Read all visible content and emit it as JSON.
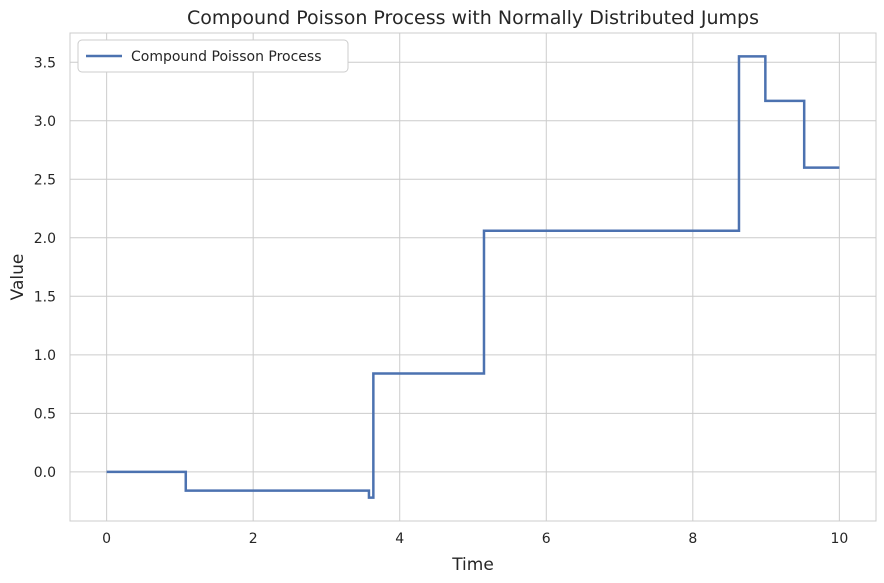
{
  "chart_data": {
    "type": "line",
    "title": "Compound Poisson Process with Normally Distributed Jumps",
    "xlabel": "Time",
    "ylabel": "Value",
    "xlim": [
      -0.5,
      10.5
    ],
    "ylim": [
      -0.42,
      3.75
    ],
    "xticks": [
      0,
      2,
      4,
      6,
      8,
      10
    ],
    "yticks": [
      -0.0,
      0.5,
      1.0,
      1.5,
      2.0,
      2.5,
      3.0,
      3.5
    ],
    "ytick_labels": [
      "0.0",
      "0.5",
      "1.0",
      "1.5",
      "2.0",
      "2.5",
      "3.0",
      "3.5"
    ],
    "grid": true,
    "legend_position": "top-left",
    "series": [
      {
        "name": "Compound Poisson Process",
        "color": "#4c72b0",
        "step": true,
        "x": [
          0,
          1.08,
          3.58,
          3.64,
          5.15,
          8.63,
          8.99,
          9.52,
          10
        ],
        "y": [
          0.0,
          -0.16,
          -0.22,
          0.84,
          2.06,
          3.55,
          3.17,
          2.6,
          2.6
        ]
      }
    ]
  }
}
